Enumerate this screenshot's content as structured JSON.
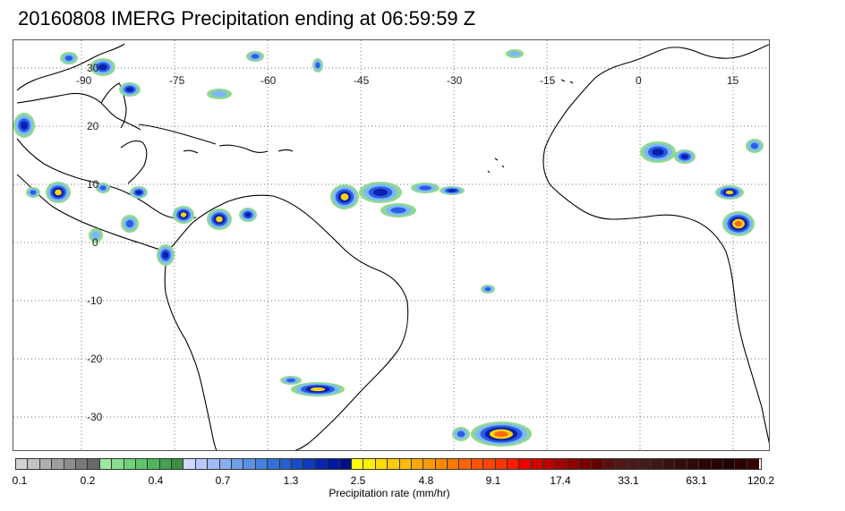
{
  "title": "20160808 IMERG Precipitation ending at 06:59:59 Z",
  "map": {
    "longitude_labels": [
      "-90",
      "-75",
      "-60",
      "-45",
      "-30",
      "-15",
      "0",
      "15"
    ],
    "latitude_labels": [
      "30",
      "20",
      "10",
      "0",
      "-10",
      "-20",
      "-30"
    ],
    "grid": "dotted",
    "coastline_color": "#000000"
  },
  "legend": {
    "title": "Precipitation rate (mm/hr)",
    "tick_labels": [
      "0.1",
      "0.2",
      "0.4",
      "0.7",
      "1.3",
      "2.5",
      "4.8",
      "9.1",
      "17.4",
      "33.1",
      "63.1",
      "120.2"
    ],
    "colors": [
      "#d4d4d4",
      "#c2c2c2",
      "#b0b0b0",
      "#9e9e9e",
      "#8c8c8c",
      "#7a7a7a",
      "#686868",
      "#9fe6a0",
      "#88dc8e",
      "#72d07c",
      "#60c46b",
      "#50b55b",
      "#45a24f",
      "#3c8f44",
      "#cfd9ff",
      "#b8c9ff",
      "#9fbcf5",
      "#86aef0",
      "#6fa0ea",
      "#5a91e4",
      "#4681de",
      "#3470d6",
      "#265fce",
      "#1a4cc4",
      "#1038b8",
      "#0626ad",
      "#0018a0",
      "#000f8a",
      "#ffff00",
      "#ffee00",
      "#ffdd00",
      "#ffcc00",
      "#ffbb00",
      "#ffaa00",
      "#ff9900",
      "#ff8800",
      "#ff7700",
      "#ff6600",
      "#ff5500",
      "#ff4400",
      "#ff3300",
      "#ff1a00",
      "#ee0000",
      "#d40000",
      "#bb0000",
      "#a30000",
      "#8f0000",
      "#7a0000",
      "#660000",
      "#5a1010",
      "#521818",
      "#4a1a1a",
      "#441a1a",
      "#3f1515",
      "#3a1010",
      "#350c0c",
      "#300808",
      "#2b0505",
      "#260303",
      "#200000",
      "#2a0000",
      "#3a0000"
    ]
  }
}
